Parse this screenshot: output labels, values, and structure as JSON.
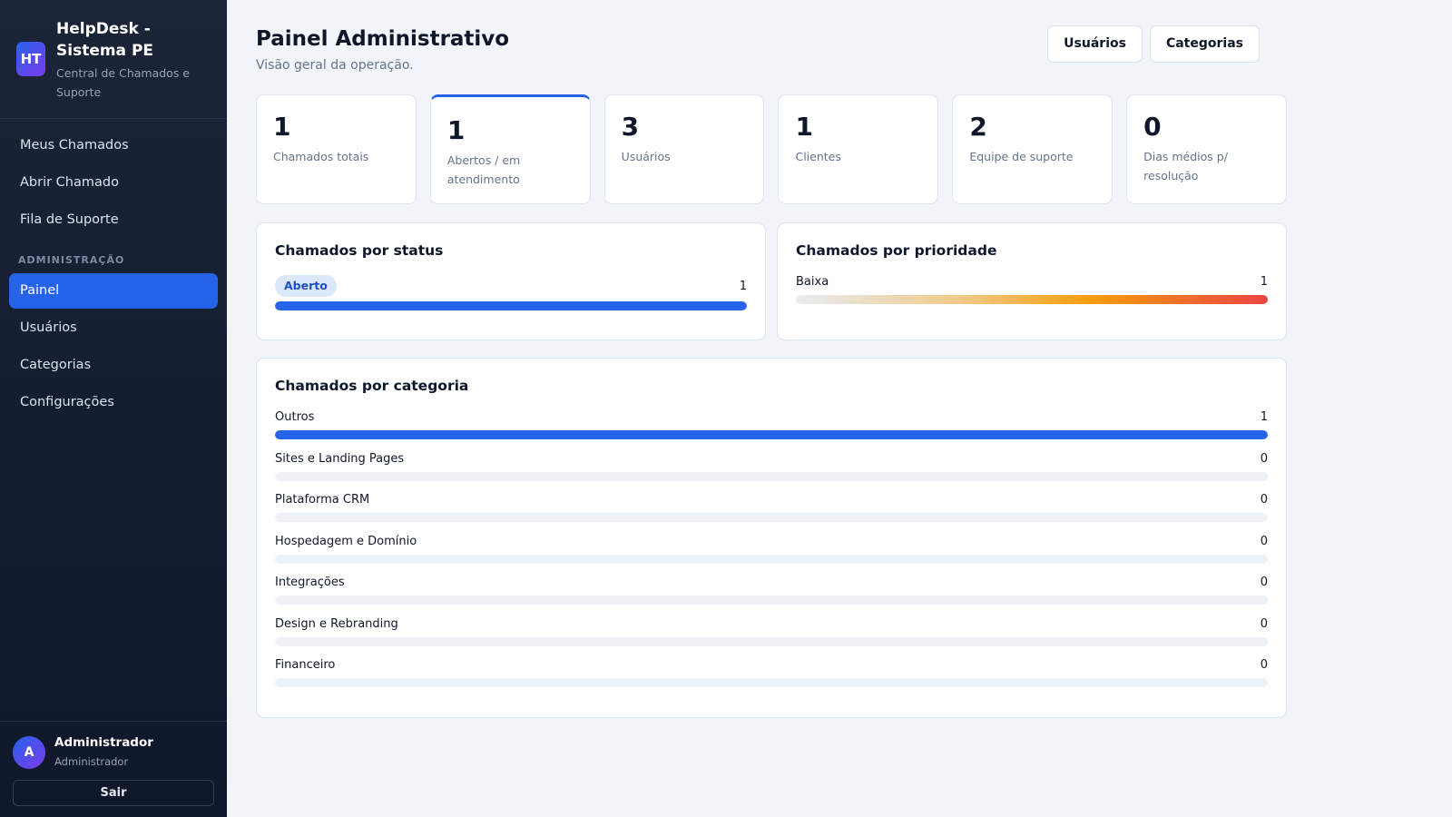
{
  "brand": {
    "logo_text": "HT",
    "title": "HelpDesk - Sistema PE",
    "subtitle": "Central de Chamados e Suporte"
  },
  "nav": {
    "items": [
      {
        "label": "Meus Chamados"
      },
      {
        "label": "Abrir Chamado"
      },
      {
        "label": "Fila de Suporte"
      }
    ],
    "admin_section_label": "ADMINISTRAÇÃO",
    "admin_items": [
      {
        "label": "Painel",
        "active": true
      },
      {
        "label": "Usuários"
      },
      {
        "label": "Categorias"
      },
      {
        "label": "Configurações"
      }
    ]
  },
  "user": {
    "avatar_initial": "A",
    "name": "Administrador",
    "role": "Administrador",
    "logout_label": "Sair"
  },
  "header": {
    "title": "Painel Administrativo",
    "subtitle": "Visão geral da operação.",
    "actions": [
      {
        "label": "Usuários"
      },
      {
        "label": "Categorias"
      }
    ]
  },
  "stats": [
    {
      "value": "1",
      "label": "Chamados totais"
    },
    {
      "value": "1",
      "label": "Abertos / em atendimento"
    },
    {
      "value": "3",
      "label": "Usuários"
    },
    {
      "value": "1",
      "label": "Clientes"
    },
    {
      "value": "2",
      "label": "Equipe de suporte"
    },
    {
      "value": "0",
      "label": "Dias médios p/ resolução"
    }
  ],
  "status_panel": {
    "title": "Chamados por status",
    "rows": [
      {
        "label": "Aberto",
        "count": "1",
        "fraction": 1.0
      }
    ]
  },
  "priority_panel": {
    "title": "Chamados por prioridade",
    "rows": [
      {
        "label": "Baixa",
        "count": "1",
        "fraction": 1.0
      }
    ]
  },
  "category_panel": {
    "title": "Chamados por categoria",
    "rows": [
      {
        "label": "Outros",
        "count": "1",
        "fraction": 1.0
      },
      {
        "label": "Sites e Landing Pages",
        "count": "0",
        "fraction": 0
      },
      {
        "label": "Plataforma CRM",
        "count": "0",
        "fraction": 0
      },
      {
        "label": "Hospedagem e Domínio",
        "count": "0",
        "fraction": 0
      },
      {
        "label": "Integrações",
        "count": "0",
        "fraction": 0
      },
      {
        "label": "Design e Rebranding",
        "count": "0",
        "fraction": 0
      },
      {
        "label": "Financeiro",
        "count": "0",
        "fraction": 0
      }
    ]
  },
  "colors": {
    "accent": "#2563eb",
    "sidebar_bg": "#0f172a",
    "page_bg": "#f1f4f9"
  }
}
